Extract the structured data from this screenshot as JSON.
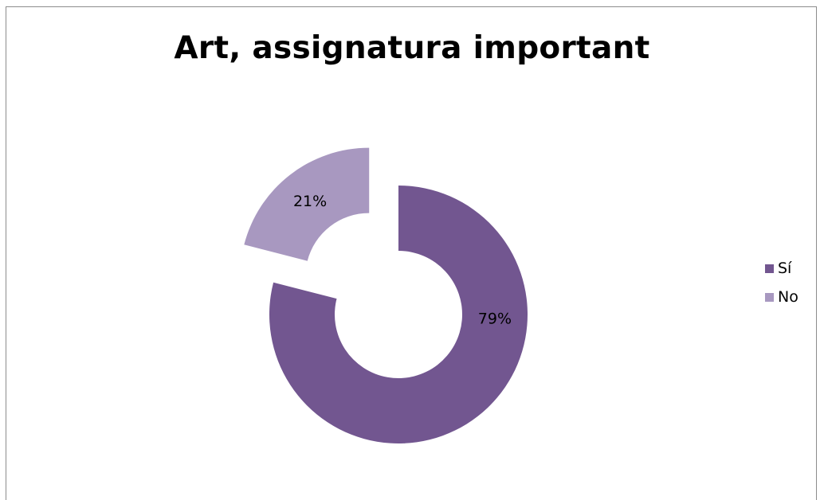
{
  "chart_data": {
    "type": "pie",
    "style": "doughnut-exploded",
    "title": "Art, assignatura important",
    "categories": [
      "Sí",
      "No"
    ],
    "values": [
      79,
      21
    ],
    "labels": [
      "79%",
      "21%"
    ],
    "colors": [
      "#725690",
      "#a898c0"
    ],
    "legend": "right"
  }
}
